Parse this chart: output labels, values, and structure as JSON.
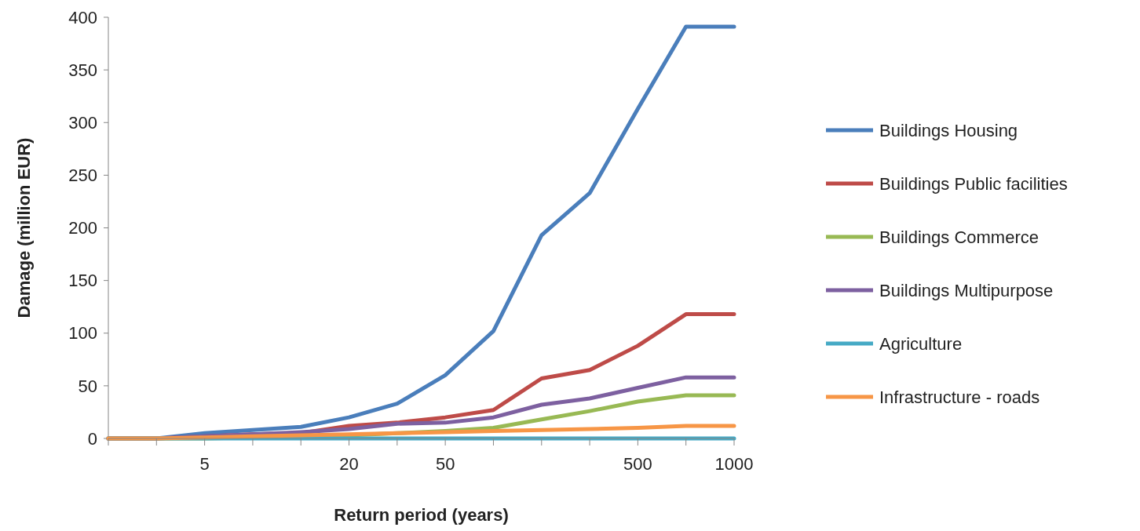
{
  "chart_data": {
    "type": "line",
    "xlabel": "Return period (years)",
    "ylabel": "Damage (million EUR)",
    "categories": [
      null,
      null,
      "5",
      null,
      null,
      "20",
      null,
      "50",
      null,
      null,
      null,
      "500",
      null,
      "1000"
    ],
    "series": [
      {
        "name": "Buildings Housing",
        "color": "#4a7ebb",
        "values": [
          0,
          0,
          5,
          8,
          11,
          20,
          33,
          60,
          102,
          193,
          233,
          313,
          391,
          391
        ]
      },
      {
        "name": "Buildings Public facilities",
        "color": "#be4b48",
        "values": [
          0,
          0,
          2,
          4,
          5,
          12,
          15,
          20,
          27,
          57,
          65,
          88,
          118,
          118
        ]
      },
      {
        "name": "Buildings Commerce",
        "color": "#98b954",
        "values": [
          0,
          0,
          0,
          1,
          2,
          3,
          5,
          7,
          10,
          18,
          26,
          35,
          41,
          41
        ]
      },
      {
        "name": "Buildings Multipurpose",
        "color": "#7d60a0",
        "values": [
          0,
          0,
          2,
          4,
          6,
          9,
          14,
          15,
          20,
          32,
          38,
          48,
          58,
          58
        ]
      },
      {
        "name": "Agriculture",
        "color": "#46aac5",
        "values": [
          0,
          0,
          0,
          0,
          0,
          0,
          0,
          0,
          0,
          0,
          0,
          0,
          0,
          0
        ]
      },
      {
        "name": "Infrastructure - roads",
        "color": "#f79646",
        "values": [
          0,
          0,
          1,
          2,
          3,
          4,
          5,
          6,
          7,
          8,
          9,
          10,
          12,
          12
        ]
      }
    ],
    "ylim": [
      0,
      400
    ],
    "yticks": [
      0,
      50,
      100,
      150,
      200,
      250,
      300,
      350,
      400
    ],
    "grid": false,
    "legend": "right",
    "marker": "none",
    "line_style": "solid"
  }
}
